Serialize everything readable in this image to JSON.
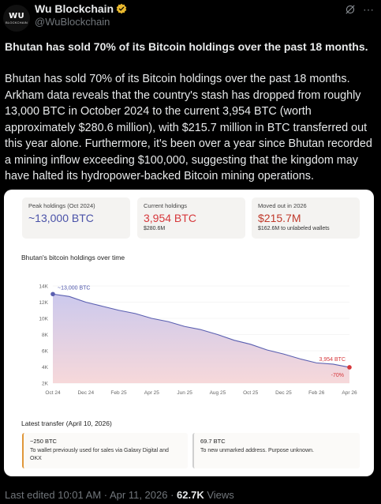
{
  "author": {
    "avatar_text": "WU",
    "avatar_subtext": "BLOCKCHAIN",
    "name": "Wu Blockchain",
    "handle": "@WuBlockchain"
  },
  "post": {
    "headline": "Bhutan has sold 70% of its Bitcoin holdings over the past 18 months.",
    "body": "Bhutan has sold 70% of its Bitcoin holdings over the past 18 months. Arkham data reveals that the country's stash has dropped from roughly 13,000 BTC in October 2024 to the current 3,954 BTC (worth approximately $280.6 million), with $215.7 million in BTC transferred out this year alone. Furthermore, it's been over a year since Bhutan recorded a mining inflow exceeding $100,000, suggesting that the kingdom may have halted its hydropower-backed Bitcoin mining operations."
  },
  "card": {
    "stats": [
      {
        "label": "Peak holdings (Oct 2024)",
        "value": "~13,000 BTC",
        "sub": ""
      },
      {
        "label": "Current holdings",
        "value": "3,954 BTC",
        "sub": "$280.6M"
      },
      {
        "label": "Moved out in 2026",
        "value": "$215.7M",
        "sub": "$162.6M to unlabeled wallets"
      }
    ],
    "chart_title": "Bhutan's bitcoin holdings over time",
    "transfer_title": "Latest transfer (April 10, 2026)",
    "transfers": [
      {
        "amount": "−250 BTC",
        "desc": "To wallet previously used for sales via Galaxy Digital and OKX"
      },
      {
        "amount": "69.7 BTC",
        "desc": "To new unmarked address. Purpose unknown."
      }
    ]
  },
  "chart_data": {
    "type": "area",
    "title": "Bhutan's bitcoin holdings over time",
    "x": [
      "Oct 24",
      "Nov 24",
      "Dec 24",
      "Jan 25",
      "Feb 25",
      "Mar 25",
      "Apr 25",
      "May 25",
      "Jun 25",
      "Jul 25",
      "Aug 25",
      "Sep 25",
      "Oct 25",
      "Nov 25",
      "Dec 25",
      "Jan 26",
      "Feb 26",
      "Mar 26",
      "Apr 26"
    ],
    "y": [
      13000,
      12700,
      12000,
      11500,
      11000,
      10600,
      10000,
      9600,
      9000,
      8600,
      8000,
      7300,
      6800,
      6100,
      5600,
      5000,
      4500,
      4350,
      3954
    ],
    "xticks": [
      "Oct 24",
      "Dec 24",
      "Feb 25",
      "Apr 25",
      "Jun 25",
      "Aug 25",
      "Oct 25",
      "Dec 25",
      "Feb 26",
      "Apr 26"
    ],
    "yticks": [
      "14K",
      "12K",
      "10K",
      "8K",
      "6K",
      "4K",
      "2K"
    ],
    "ylim": [
      2000,
      14000
    ],
    "annotations": {
      "start": "~13,000 BTC",
      "end": "3,954 BTC",
      "change": "-70%"
    },
    "colors": {
      "line": "#5a5fb0",
      "fill_top": "#c9c6ec",
      "fill_bottom": "#f6d6d8",
      "end_point": "#d6383c",
      "start_point": "#5a5fb0"
    }
  },
  "footer": {
    "edited": "Last edited 10:01 AM · Apr 11, 2026 · ",
    "views_count": "62.7K",
    "views_label": " Views"
  }
}
